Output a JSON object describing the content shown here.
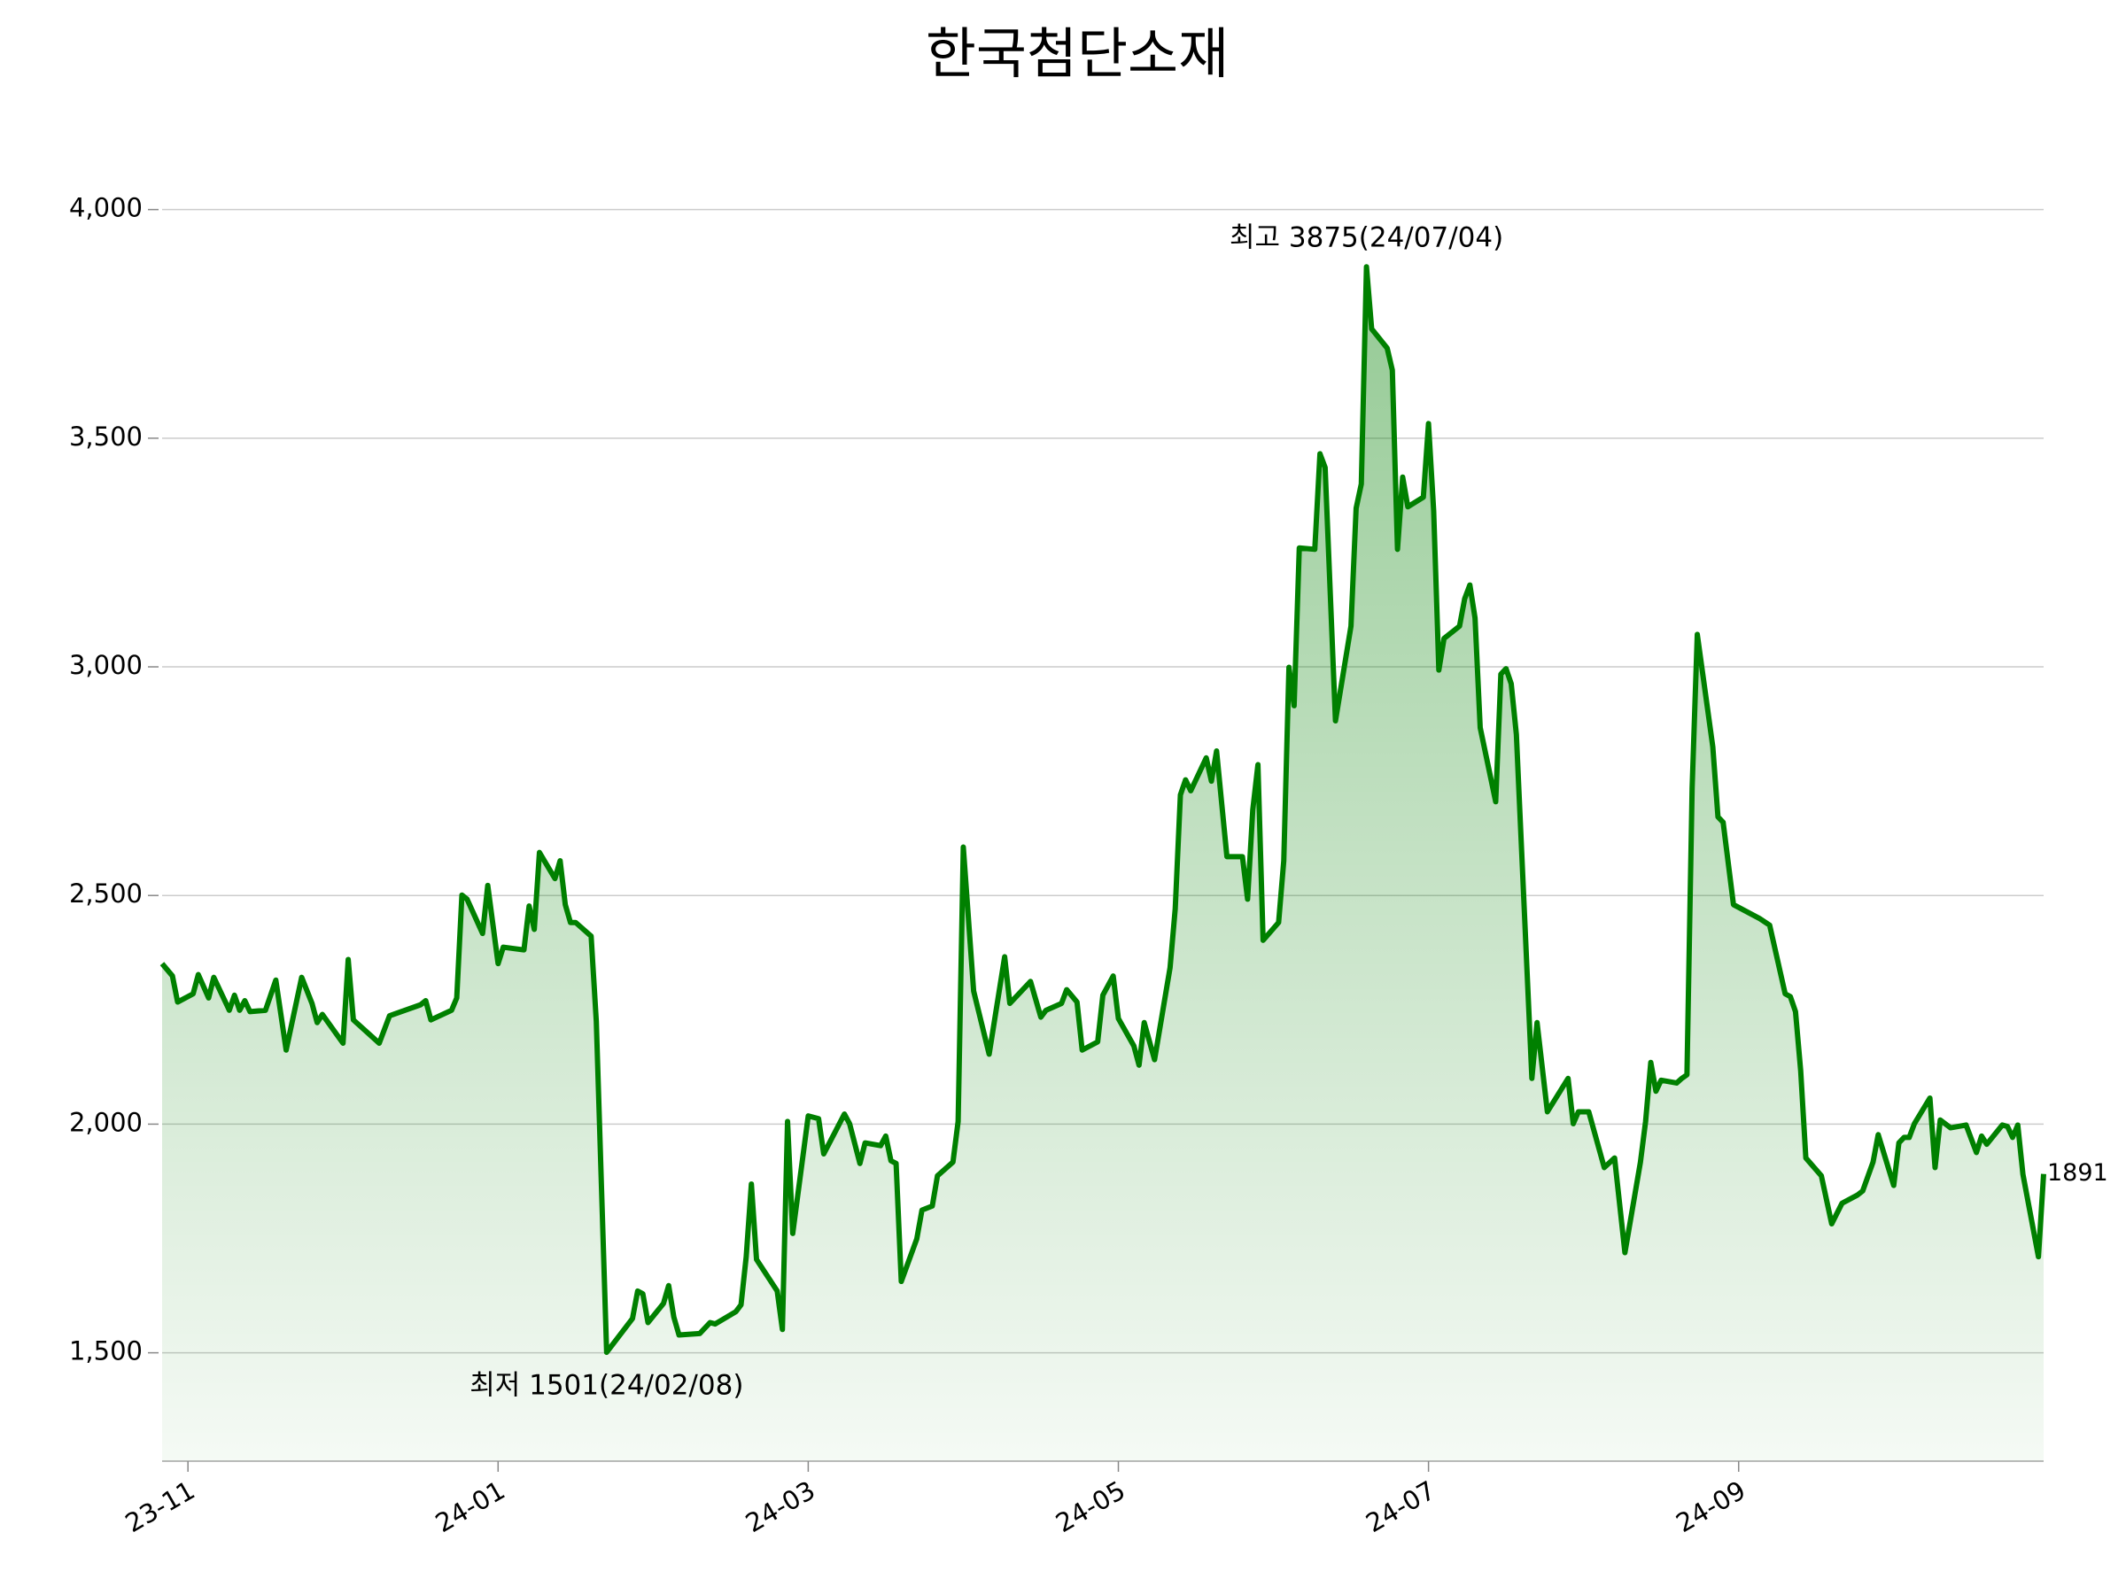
{
  "chart_data": {
    "type": "line",
    "title": "한국첨단소재",
    "color": "#008000",
    "x": [
      "2023-11-14",
      "2023-11-16",
      "2023-11-17",
      "2023-11-20",
      "2023-11-21",
      "2023-11-23",
      "2023-11-24",
      "2023-11-27",
      "2023-11-28",
      "2023-11-29",
      "2023-11-30",
      "2023-12-01",
      "2023-12-04",
      "2023-12-06",
      "2023-12-08",
      "2023-12-11",
      "2023-12-13",
      "2023-12-14",
      "2023-12-15",
      "2023-12-19",
      "2023-12-20",
      "2023-12-21",
      "2023-12-26",
      "2023-12-28",
      "2024-01-03",
      "2024-01-04",
      "2024-01-05",
      "2024-01-09",
      "2024-01-10",
      "2024-01-11",
      "2024-01-12",
      "2024-01-15",
      "2024-01-16",
      "2024-01-18",
      "2024-01-19",
      "2024-01-23",
      "2024-01-24",
      "2024-01-25",
      "2024-01-26",
      "2024-01-29",
      "2024-01-30",
      "2024-01-31",
      "2024-02-01",
      "2024-02-02",
      "2024-02-05",
      "2024-02-06",
      "2024-02-08",
      "2024-02-13",
      "2024-02-14",
      "2024-02-15",
      "2024-02-16",
      "2024-02-19",
      "2024-02-20",
      "2024-02-21",
      "2024-02-22",
      "2024-02-26",
      "2024-02-28",
      "2024-02-29",
      "2024-03-04",
      "2024-03-05",
      "2024-03-06",
      "2024-03-07",
      "2024-03-08",
      "2024-03-12",
      "2024-03-13",
      "2024-03-14",
      "2024-03-15",
      "2024-03-18",
      "2024-03-20",
      "2024-03-21",
      "2024-03-25",
      "2024-03-26",
      "2024-03-28",
      "2024-03-29",
      "2024-04-01",
      "2024-04-02",
      "2024-04-03",
      "2024-04-04",
      "2024-04-05",
      "2024-04-08",
      "2024-04-09",
      "2024-04-11",
      "2024-04-12",
      "2024-04-15",
      "2024-04-16",
      "2024-04-17",
      "2024-04-19",
      "2024-04-22",
      "2024-04-25",
      "2024-04-26",
      "2024-04-30",
      "2024-05-02",
      "2024-05-03",
      "2024-05-06",
      "2024-05-07",
      "2024-05-09",
      "2024-05-10",
      "2024-05-13",
      "2024-05-14",
      "2024-05-16",
      "2024-05-17",
      "2024-05-20",
      "2024-05-21",
      "2024-05-22",
      "2024-05-24",
      "2024-05-27",
      "2024-05-28",
      "2024-05-29",
      "2024-05-30",
      "2024-05-31",
      "2024-06-03",
      "2024-06-04",
      "2024-06-05",
      "2024-06-07",
      "2024-06-10",
      "2024-06-11",
      "2024-06-12",
      "2024-06-13",
      "2024-06-14",
      "2024-06-17",
      "2024-06-18",
      "2024-06-19",
      "2024-06-20",
      "2024-06-21",
      "2024-06-24",
      "2024-06-25",
      "2024-06-26",
      "2024-06-28",
      "2024-07-01",
      "2024-07-02",
      "2024-07-03",
      "2024-07-04",
      "2024-07-05",
      "2024-07-08",
      "2024-07-09",
      "2024-07-10",
      "2024-07-11",
      "2024-07-12",
      "2024-07-15",
      "2024-07-16",
      "2024-07-17",
      "2024-07-18",
      "2024-07-19",
      "2024-07-22",
      "2024-07-23",
      "2024-07-24",
      "2024-07-25",
      "2024-07-26",
      "2024-07-29",
      "2024-07-30",
      "2024-07-31",
      "2024-08-01",
      "2024-08-02",
      "2024-08-05",
      "2024-08-06",
      "2024-08-08",
      "2024-08-12",
      "2024-08-13",
      "2024-08-14",
      "2024-08-16",
      "2024-08-19",
      "2024-08-21",
      "2024-08-23",
      "2024-08-26",
      "2024-08-27",
      "2024-08-28",
      "2024-08-29",
      "2024-08-30",
      "2024-09-02",
      "2024-09-03",
      "2024-09-04",
      "2024-09-05",
      "2024-09-06",
      "2024-09-09",
      "2024-09-10",
      "2024-09-11",
      "2024-09-13",
      "2024-09-18",
      "2024-09-20",
      "2024-09-23",
      "2024-09-24",
      "2024-09-25",
      "2024-09-26",
      "2024-09-27",
      "2024-09-30",
      "2024-10-02",
      "2024-10-04",
      "2024-10-07",
      "2024-10-08",
      "2024-10-10",
      "2024-10-11",
      "2024-10-14",
      "2024-10-15",
      "2024-10-16",
      "2024-10-17",
      "2024-10-18",
      "2024-10-21",
      "2024-10-22",
      "2024-10-23",
      "2024-10-25",
      "2024-10-28",
      "2024-10-30",
      "2024-10-31",
      "2024-11-01",
      "2024-11-04",
      "2024-11-05",
      "2024-11-06",
      "2024-11-07",
      "2024-11-08",
      "2024-11-11",
      "2024-11-12"
    ],
    "values": [
      2351,
      2324,
      2267,
      2285,
      2327,
      2276,
      2321,
      2249,
      2282,
      2249,
      2270,
      2246,
      2249,
      2315,
      2162,
      2321,
      2264,
      2222,
      2240,
      2177,
      2360,
      2228,
      2177,
      2237,
      2261,
      2270,
      2228,
      2249,
      2276,
      2501,
      2492,
      2417,
      2522,
      2351,
      2387,
      2381,
      2477,
      2426,
      2594,
      2537,
      2576,
      2480,
      2441,
      2441,
      2411,
      2225,
      1501,
      1575,
      1635,
      1629,
      1566,
      1608,
      1647,
      1578,
      1539,
      1542,
      1566,
      1563,
      1590,
      1605,
      1710,
      1869,
      1704,
      1635,
      1551,
      2006,
      1761,
      2018,
      2012,
      1935,
      2022,
      2001,
      1914,
      1959,
      1953,
      1974,
      1920,
      1914,
      1656,
      1749,
      1812,
      1821,
      1887,
      1917,
      2006,
      2606,
      2291,
      2153,
      2366,
      2264,
      2312,
      2234,
      2249,
      2264,
      2294,
      2267,
      2162,
      2180,
      2282,
      2324,
      2231,
      2171,
      2129,
      2222,
      2141,
      2342,
      2471,
      2720,
      2753,
      2729,
      2801,
      2750,
      2816,
      2585,
      2585,
      2492,
      2687,
      2786,
      2402,
      2441,
      2576,
      2999,
      2915,
      3260,
      3257,
      3466,
      3436,
      2882,
      3089,
      3347,
      3400,
      3875,
      3739,
      3697,
      3649,
      3257,
      3415,
      3350,
      3371,
      3532,
      3341,
      2993,
      3062,
      3089,
      3149,
      3179,
      3107,
      2867,
      2705,
      2984,
      2996,
      2963,
      2852,
      2100,
      2222,
      2027,
      2100,
      2001,
      2027,
      2027,
      1905,
      1926,
      1719,
      1917,
      2006,
      2135,
      2072,
      2096,
      2090,
      2100,
      2108,
      2735,
      3071,
      2825,
      2672,
      2660,
      2480,
      2450,
      2435,
      2285,
      2279,
      2246,
      2117,
      1926,
      1887,
      1782,
      1827,
      1845,
      1854,
      1917,
      1977,
      1866,
      1959,
      1971,
      1971,
      2001,
      2057,
      1905,
      2009,
      1992,
      1998,
      1938,
      1974,
      1956,
      1998,
      1995,
      1971,
      1998,
      1890,
      1710,
      1891
    ],
    "xlim": [
      "2023-11-14",
      "2024-11-12"
    ],
    "xticks": [
      {
        "value": "2023-11-19",
        "label": "23-11"
      },
      {
        "value": "2024-01-18",
        "label": "24-01"
      },
      {
        "value": "2024-03-18",
        "label": "24-03"
      },
      {
        "value": "2024-05-17",
        "label": "24-05"
      },
      {
        "value": "2024-07-16",
        "label": "24-07"
      },
      {
        "value": "2024-09-14",
        "label": "24-09"
      }
    ],
    "ylim": [
      1263,
      4100
    ],
    "yticks": [
      {
        "value": 1500,
        "label": "1,500"
      },
      {
        "value": 2000,
        "label": "2,000"
      },
      {
        "value": 2500,
        "label": "2,500"
      },
      {
        "value": 3000,
        "label": "3,000"
      },
      {
        "value": 3500,
        "label": "3,500"
      },
      {
        "value": 4000,
        "label": "4,000"
      }
    ],
    "grid": true,
    "annotations": {
      "max": {
        "text": "최고 3875(24/07/04)",
        "color": "#ff0000"
      },
      "min": {
        "text": "최저 1501(24/02/08)",
        "color": "#0000ff"
      }
    }
  }
}
